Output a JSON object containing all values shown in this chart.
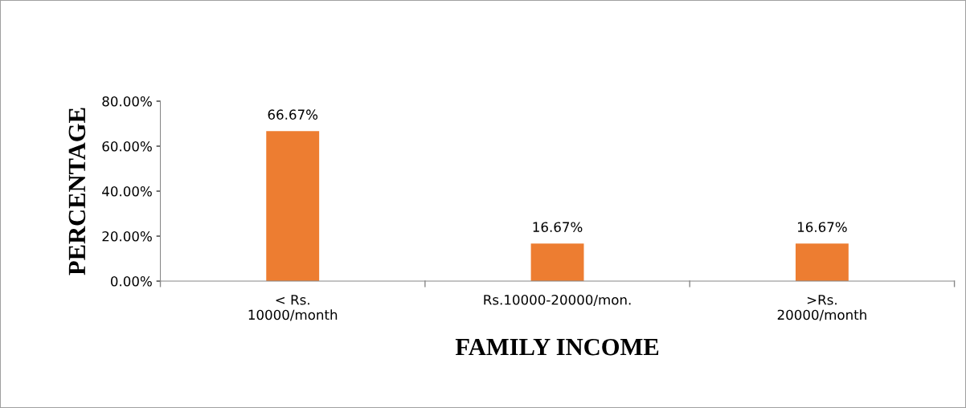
{
  "chart_data": {
    "type": "bar",
    "xlabel": "FAMILY INCOME",
    "ylabel": "PERCENTAGE",
    "categories": [
      "< Rs.\n10000/month",
      "Rs.10000-20000/mon.",
      ">Rs.\n20000/month"
    ],
    "values": [
      66.67,
      16.67,
      16.67
    ],
    "color": "#ed7d31",
    "value_labels": [
      "66.67%",
      "16.67%",
      "16.67%"
    ],
    "ylim": [
      0,
      80
    ],
    "yticks": [
      {
        "value": 0,
        "label": "0.00%"
      },
      {
        "value": 20,
        "label": "20.00%"
      },
      {
        "value": 40,
        "label": "40.00%"
      },
      {
        "value": 60,
        "label": "60.00%"
      },
      {
        "value": 80,
        "label": "80.00%"
      }
    ],
    "grid": false,
    "legend": false
  }
}
